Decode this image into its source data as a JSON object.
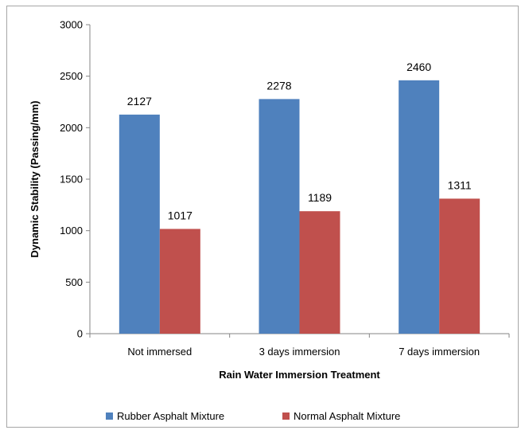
{
  "chart_data": {
    "type": "bar",
    "title": "",
    "xlabel": "Rain Water Immersion Treatment",
    "ylabel": "Dynamic Stability (Passing/mm)",
    "categories": [
      "Not immersed",
      "3 days immersion",
      "7 days immersion"
    ],
    "series": [
      {
        "name": "Rubber Asphalt Mixture",
        "color": "#4f81bd",
        "values": [
          2127,
          2278,
          2460
        ]
      },
      {
        "name": "Normal Asphalt Mixture",
        "color": "#c0504d",
        "values": [
          1017,
          1189,
          1311
        ]
      }
    ],
    "ylim": [
      0,
      3000
    ],
    "yticks": [
      0,
      500,
      1000,
      1500,
      2000,
      2500,
      3000
    ],
    "grid": false,
    "legend_position": "bottom"
  }
}
